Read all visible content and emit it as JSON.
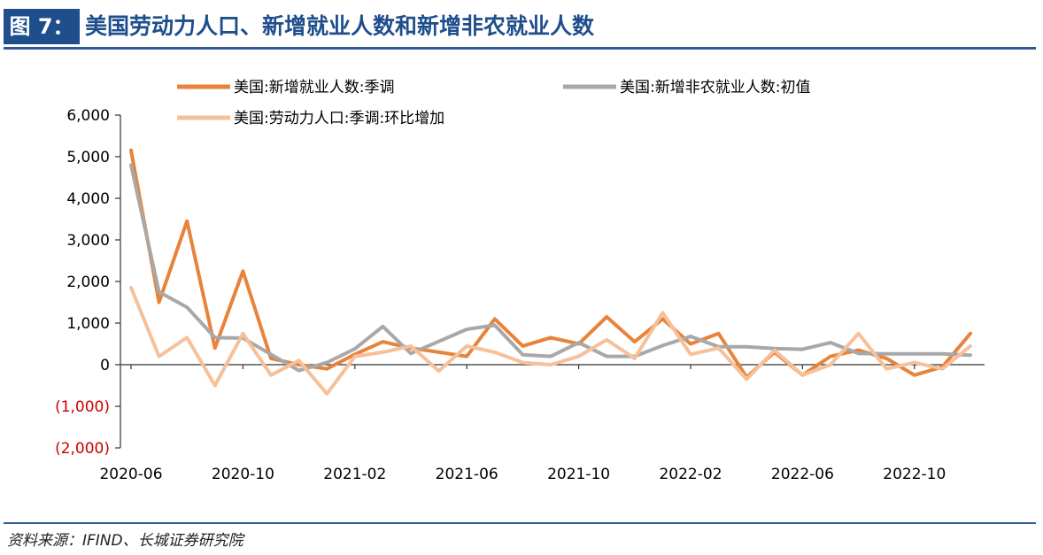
{
  "figure": {
    "label": "图 7：",
    "title": "美国劳动力人口、新增就业人数和新增非农就业人数",
    "source": "资料来源：IFIND、长城证券研究院"
  },
  "chart_data": {
    "type": "line",
    "title": "",
    "xlabel": "",
    "ylabel": "",
    "ylim": [
      -2000,
      6000
    ],
    "yticks": [
      -2000,
      -1000,
      0,
      1000,
      2000,
      3000,
      4000,
      5000,
      6000
    ],
    "ytick_labels": [
      "(2,000)",
      "(1,000)",
      "0",
      "1,000",
      "2,000",
      "3,000",
      "4,000",
      "5,000",
      "6,000"
    ],
    "negative_tick_color": "#cc0000",
    "grid": false,
    "legend_position": "top",
    "x": [
      "2020-06",
      "2020-07",
      "2020-08",
      "2020-09",
      "2020-10",
      "2020-11",
      "2020-12",
      "2021-01",
      "2021-02",
      "2021-03",
      "2021-04",
      "2021-05",
      "2021-06",
      "2021-07",
      "2021-08",
      "2021-09",
      "2021-10",
      "2021-11",
      "2021-12",
      "2022-01",
      "2022-02",
      "2022-03",
      "2022-04",
      "2022-05",
      "2022-06",
      "2022-07",
      "2022-08",
      "2022-09",
      "2022-10",
      "2022-11",
      "2022-12"
    ],
    "xtick_labels": [
      "2020-06",
      "2020-10",
      "2021-02",
      "2021-06",
      "2021-10",
      "2022-02",
      "2022-06",
      "2022-10"
    ],
    "series": [
      {
        "name": "美国:新增就业人数:季调",
        "color": "#e8833a",
        "width": 4,
        "values": [
          5150,
          1500,
          3450,
          400,
          2250,
          150,
          0,
          -100,
          250,
          550,
          400,
          300,
          200,
          1100,
          450,
          650,
          500,
          1150,
          550,
          1100,
          500,
          750,
          -300,
          300,
          -250,
          200,
          350,
          150,
          -250,
          -50,
          750
        ]
      },
      {
        "name": "美国:新增非农就业人数:初值",
        "color": "#a8a8a8",
        "width": 4,
        "values": [
          4800,
          1750,
          1380,
          650,
          640,
          250,
          -140,
          50,
          380,
          920,
          270,
          560,
          850,
          950,
          240,
          200,
          530,
          200,
          200,
          460,
          680,
          430,
          430,
          390,
          370,
          530,
          270,
          260,
          260,
          260,
          230
        ]
      },
      {
        "name": "美国:劳动力人口:季调:环比增加",
        "color": "#f5c09a",
        "width": 4,
        "values": [
          1850,
          200,
          650,
          -500,
          750,
          -250,
          100,
          -700,
          200,
          300,
          450,
          -150,
          450,
          300,
          50,
          0,
          200,
          600,
          150,
          1250,
          250,
          400,
          -350,
          350,
          -250,
          0,
          750,
          -100,
          50,
          -100,
          450
        ]
      }
    ]
  }
}
